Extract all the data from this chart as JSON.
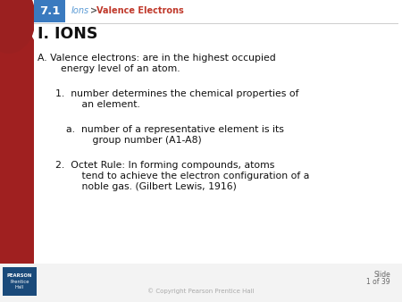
{
  "slide_number": "7.1",
  "breadcrumb_ions": "Ions",
  "breadcrumb_arrow": " > ",
  "breadcrumb_valence": "Valence Electrons",
  "main_title": "I. IONS",
  "line_A_1": "A. Valence electrons: are in the highest occupied",
  "line_A_2": "    energy level of an atom.",
  "line_1_1": "1.  number determines the chemical properties of",
  "line_1_2": "     an element.",
  "line_a_1": "a.  number of a representative element is its",
  "line_a_2": "     group number (A1-A8)",
  "line_2_1": "2.  Octet Rule: In forming compounds, atoms",
  "line_2_2": "     tend to achieve the electron configuration of a",
  "line_2_3": "     noble gas. (Gilbert Lewis, 1916)",
  "copyright": "© Copyright Pearson Prentice Hall",
  "slide_label_1": "Slide",
  "slide_label_2": "1 of 39",
  "bg_white": "#ffffff",
  "bg_light_gray": "#f2f2f2",
  "red_dark": "#7a1a1a",
  "red_medium": "#9b2020",
  "blue_box_color": "#3a7abf",
  "breadcrumb_ions_color": "#5b9bd5",
  "breadcrumb_gt_color": "#555555",
  "breadcrumb_valence_color": "#c0392b",
  "main_title_color": "#111111",
  "body_color": "#111111",
  "slide_label_color": "#666666",
  "copyright_color": "#aaaaaa",
  "pearson_bg": "#1a4a7a",
  "header_line_color": "#cccccc"
}
